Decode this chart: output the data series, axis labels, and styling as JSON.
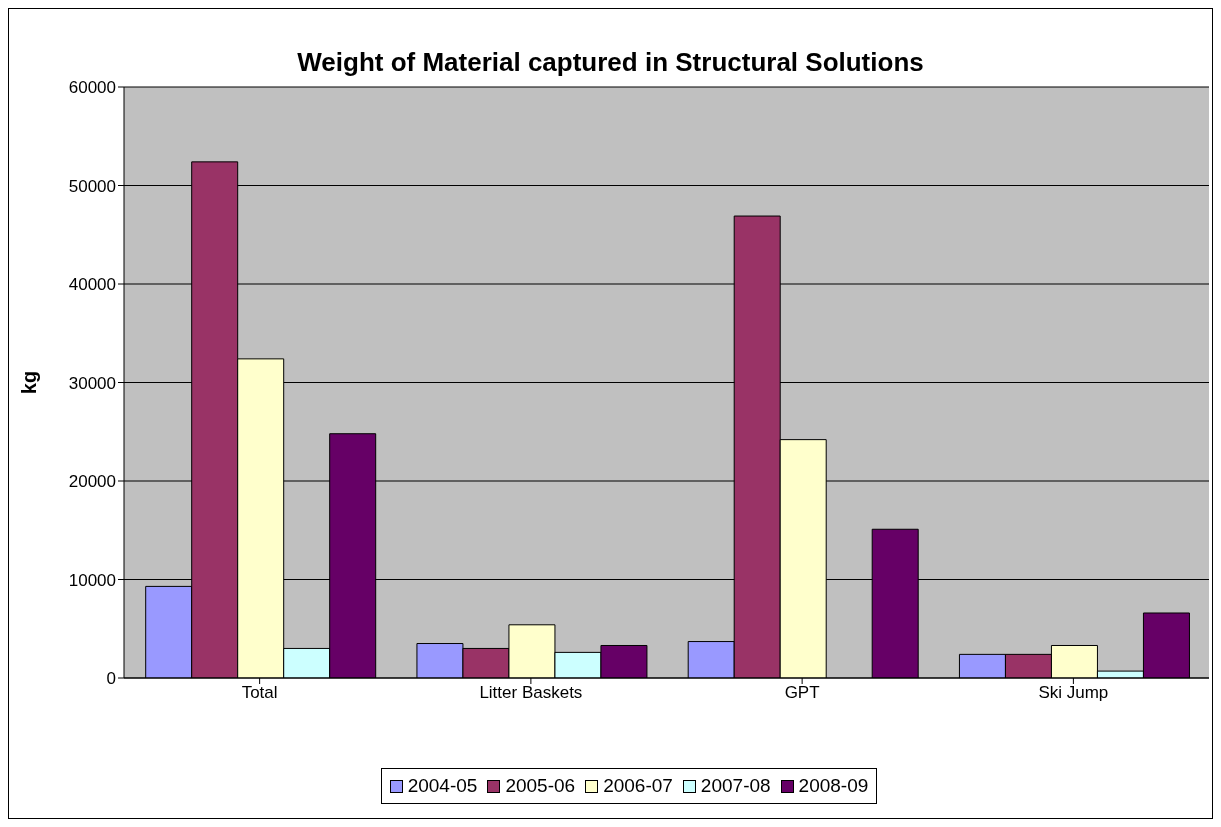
{
  "chart_data": {
    "type": "bar",
    "title": "Weight of Material captured in Structural Solutions",
    "ylabel": "kg",
    "categories": [
      "Total",
      "Litter Baskets",
      "GPT",
      "Ski Jump"
    ],
    "series": [
      {
        "name": "2004-05",
        "color": "#9999ff",
        "values": [
          9300,
          3500,
          3700,
          2400
        ]
      },
      {
        "name": "2005-06",
        "color": "#993366",
        "values": [
          52400,
          3000,
          46900,
          2400
        ]
      },
      {
        "name": "2006-07",
        "color": "#ffffcc",
        "values": [
          32400,
          5400,
          24200,
          3300
        ]
      },
      {
        "name": "2007-08",
        "color": "#ccffff",
        "values": [
          3000,
          2600,
          null,
          700
        ]
      },
      {
        "name": "2008-09",
        "color": "#660066",
        "values": [
          24800,
          3300,
          15100,
          6600
        ]
      }
    ],
    "ylim": [
      0,
      60000
    ],
    "yticks": [
      0,
      10000,
      20000,
      30000,
      40000,
      50000,
      60000
    ],
    "grid": "y",
    "legend": "bottom"
  }
}
